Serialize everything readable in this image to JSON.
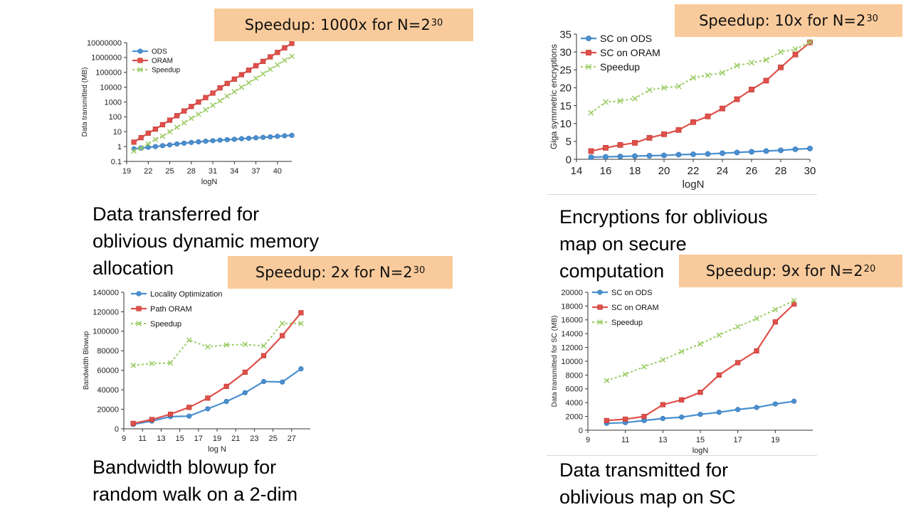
{
  "slide": {
    "captions": [
      {
        "lines": [
          "Data transferred for",
          "oblivious dynamic memory",
          "allocation"
        ]
      },
      {
        "lines": [
          "Encryptions for oblivious",
          "map on secure",
          "computation"
        ]
      },
      {
        "lines": [
          "Bandwidth blowup for",
          "random walk on a 2-dim"
        ]
      },
      {
        "lines": [
          "Data transmitted for",
          "oblivious map on SC"
        ]
      }
    ],
    "badges": [
      {
        "text": "Speedup: 1000x for N=2",
        "exp": "30"
      },
      {
        "text": "Speedup: 10x for N=2",
        "exp": "30"
      },
      {
        "text": "Speedup: 2x for N=2",
        "exp": "30"
      },
      {
        "text": "Speedup: 9x for N=2",
        "exp": "20"
      }
    ],
    "colors": {
      "blue": "#4a90d0",
      "red": "#e0504a",
      "green": "#9ccc65",
      "badge": "#f9cb9c"
    }
  },
  "chart_data": [
    {
      "type": "line",
      "xlabel": "logN",
      "ylabel": "Data transmitted (MB)",
      "yscale": "log",
      "ylim": [
        0.1,
        10000000
      ],
      "xlim": [
        19,
        42
      ],
      "xticks": [
        19,
        22,
        25,
        28,
        31,
        34,
        37,
        40
      ],
      "yticks": [
        0.1,
        1,
        10,
        100,
        1000,
        10000,
        100000,
        1000000,
        10000000
      ],
      "ytick_labels": [
        "0.1",
        "1",
        "10",
        "100",
        "1000",
        "10000",
        "100000",
        "1000000",
        "10000000"
      ],
      "legend": "top-left",
      "x": [
        20,
        21,
        22,
        23,
        24,
        25,
        26,
        27,
        28,
        29,
        30,
        31,
        32,
        33,
        34,
        35,
        36,
        37,
        38,
        39,
        40,
        41,
        42
      ],
      "series": [
        {
          "name": "ODS",
          "values": [
            0.7,
            0.8,
            0.9,
            1.0,
            1.15,
            1.3,
            1.5,
            1.7,
            1.9,
            2.1,
            2.3,
            2.5,
            2.7,
            2.9,
            3.1,
            3.4,
            3.6,
            3.9,
            4.2,
            4.5,
            4.9,
            5.3,
            5.7
          ]
        },
        {
          "name": "ORAM",
          "values": [
            2,
            4,
            8,
            15,
            30,
            60,
            120,
            250,
            500,
            1000,
            2000,
            4000,
            9000,
            18000,
            35000,
            70000,
            140000,
            280000,
            550000,
            1100000,
            2200000,
            4500000,
            9000000
          ]
        },
        {
          "name": "Speedup",
          "values": [
            0.5,
            0.8,
            1.5,
            3,
            5,
            10,
            20,
            40,
            80,
            150,
            300,
            600,
            1200,
            2500,
            5000,
            10000,
            20000,
            40000,
            80000,
            160000,
            320000,
            650000,
            1200000
          ]
        }
      ]
    },
    {
      "type": "line",
      "xlabel": "logN",
      "ylabel": "Giga symmetric encryptions",
      "ylim": [
        0,
        35
      ],
      "xlim": [
        14,
        30
      ],
      "xticks": [
        14,
        16,
        18,
        20,
        22,
        24,
        26,
        28,
        30
      ],
      "yticks": [
        0,
        5,
        10,
        15,
        20,
        25,
        30,
        35
      ],
      "legend": "top-left",
      "x": [
        15,
        16,
        17,
        18,
        19,
        20,
        21,
        22,
        23,
        24,
        25,
        26,
        27,
        28,
        29,
        30
      ],
      "series": [
        {
          "name": "SC on ODS",
          "values": [
            0.6,
            0.7,
            0.8,
            0.9,
            1.0,
            1.1,
            1.3,
            1.4,
            1.5,
            1.7,
            1.9,
            2.1,
            2.3,
            2.5,
            2.8,
            3.0
          ]
        },
        {
          "name": "SC on ORAM",
          "values": [
            2.3,
            3.2,
            4.0,
            4.6,
            6.0,
            7.0,
            8.2,
            10.4,
            12.0,
            14.2,
            16.8,
            19.5,
            22.0,
            25.7,
            29.3,
            32.7
          ]
        },
        {
          "name": "Speedup",
          "values": [
            13.0,
            16.0,
            16.3,
            17.0,
            19.4,
            20.0,
            20.4,
            22.8,
            23.5,
            24.2,
            26.2,
            27.0,
            27.8,
            30.0,
            30.8,
            32.8
          ]
        }
      ]
    },
    {
      "type": "line",
      "xlabel": "log N",
      "ylabel": "Bandwidth Blowup",
      "ylim": [
        0,
        140000
      ],
      "xlim": [
        9,
        29
      ],
      "xticks": [
        9,
        11,
        13,
        15,
        17,
        19,
        21,
        23,
        25,
        27
      ],
      "yticks": [
        0,
        20000,
        40000,
        60000,
        80000,
        100000,
        120000,
        140000
      ],
      "legend": "top-left",
      "x": [
        10,
        12,
        14,
        16,
        18,
        20,
        22,
        24,
        26,
        28
      ],
      "series": [
        {
          "name": "Locality Optimization",
          "values": [
            4500,
            8000,
            12500,
            13000,
            20500,
            28000,
            37000,
            48500,
            48000,
            61500
          ]
        },
        {
          "name": "Path ORAM",
          "values": [
            5500,
            9500,
            15000,
            22000,
            31500,
            43500,
            58000,
            75000,
            95500,
            119000
          ]
        },
        {
          "name": "Speedup",
          "values": [
            65000,
            67000,
            67500,
            91000,
            84000,
            86000,
            86500,
            85000,
            108000,
            108000
          ]
        }
      ]
    },
    {
      "type": "line",
      "xlabel": "logN",
      "ylabel": "Data transmitted for SC (MB)",
      "ylim": [
        0,
        20000
      ],
      "xlim": [
        9,
        21
      ],
      "xticks": [
        9,
        11,
        13,
        15,
        17,
        19
      ],
      "yticks": [
        0,
        2000,
        4000,
        6000,
        8000,
        10000,
        12000,
        14000,
        16000,
        18000,
        20000
      ],
      "legend": "top-left",
      "x": [
        10,
        11,
        12,
        13,
        14,
        15,
        16,
        17,
        18,
        19,
        20
      ],
      "series": [
        {
          "name": "SC on ODS",
          "values": [
            1000,
            1100,
            1400,
            1700,
            1900,
            2300,
            2600,
            3000,
            3300,
            3800,
            4200
          ]
        },
        {
          "name": "SC on ORAM",
          "values": [
            1400,
            1600,
            2000,
            3700,
            4400,
            5500,
            8000,
            9800,
            11500,
            15700,
            18300
          ]
        },
        {
          "name": "Speedup",
          "values": [
            7200,
            8100,
            9200,
            10200,
            11400,
            12500,
            13800,
            15000,
            16200,
            17500,
            18800
          ]
        }
      ]
    }
  ]
}
